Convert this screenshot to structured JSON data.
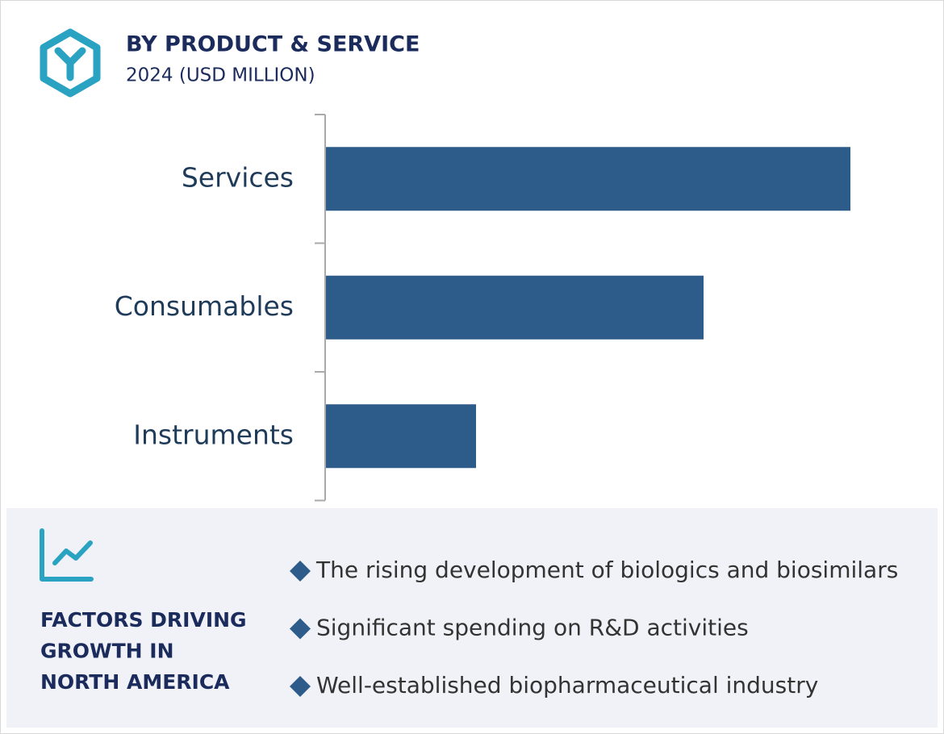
{
  "chart_data": {
    "type": "bar",
    "orientation": "horizontal",
    "title": "BY PRODUCT & SERVICE",
    "subtitle": "2024 (USD MILLION)",
    "categories": [
      "Services",
      "Consumables",
      "Instruments"
    ],
    "values": [
      650,
      468,
      186
    ],
    "color": "#2e5c8a",
    "xlim": [
      0,
      700
    ]
  },
  "factors": {
    "title_lines": [
      "FACTORS DRIVING",
      "GROWTH IN",
      "NORTH AMERICA"
    ],
    "items": [
      "The rising development of biologics and biosimilars",
      "Significant spending on R&D activities",
      "Well-established biopharmaceutical industry"
    ]
  }
}
